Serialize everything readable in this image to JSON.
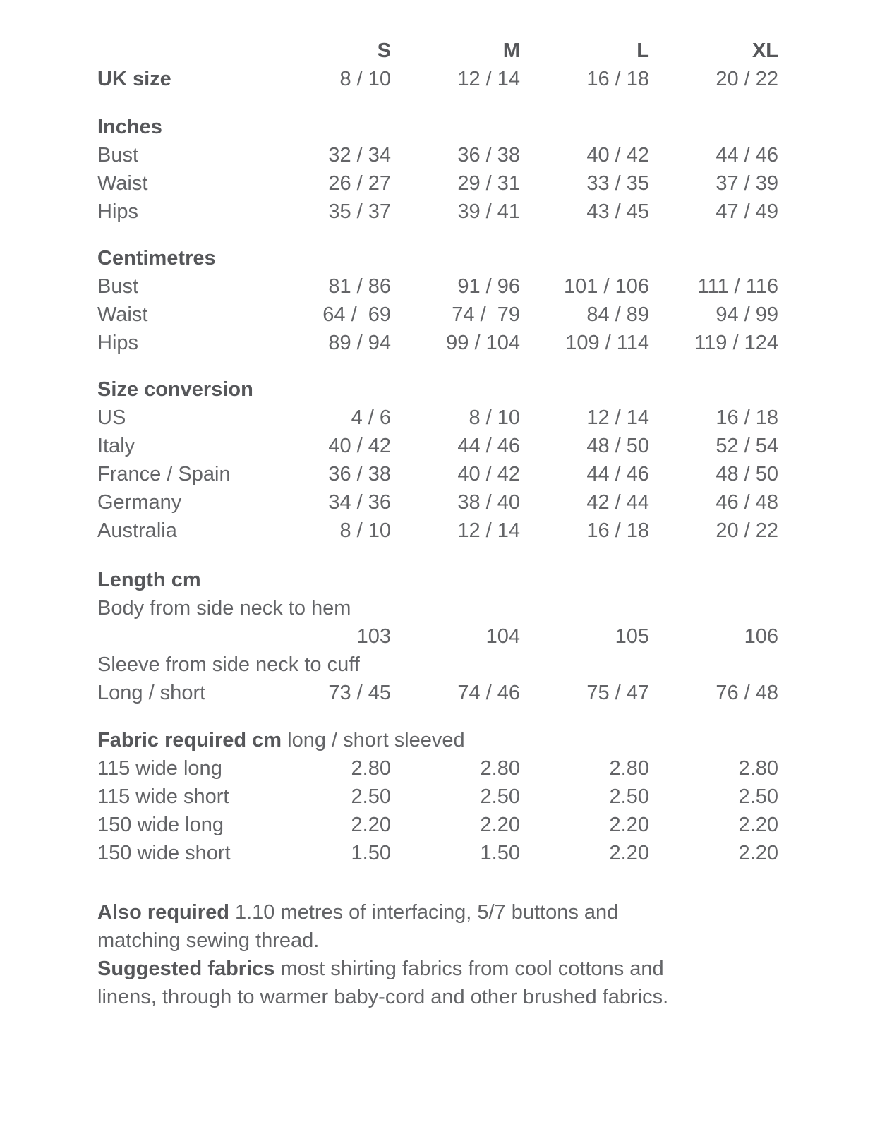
{
  "columns": [
    "S",
    "M",
    "L",
    "XL"
  ],
  "uk_size": {
    "label": "UK size",
    "values": [
      "8 / 10",
      "12 / 14",
      "16 / 18",
      "20 / 22"
    ]
  },
  "inches": {
    "title": "Inches",
    "rows": [
      {
        "label": "Bust",
        "values": [
          "32 / 34",
          "36 / 38",
          "40 / 42",
          "44 / 46"
        ]
      },
      {
        "label": "Waist",
        "values": [
          "26 / 27",
          "29 / 31",
          "33 / 35",
          "37 / 39"
        ]
      },
      {
        "label": "Hips",
        "values": [
          "35 / 37",
          "39 / 41",
          "43 / 45",
          "47 / 49"
        ]
      }
    ]
  },
  "centimetres": {
    "title": "Centimetres",
    "rows": [
      {
        "label": "Bust",
        "values": [
          "81 / 86",
          "91 / 96",
          "101 / 106",
          "111 / 116"
        ]
      },
      {
        "label": "Waist",
        "values": [
          "64 /  69",
          "74 /  79",
          "84 / 89",
          "94 / 99"
        ]
      },
      {
        "label": "Hips",
        "values": [
          "89 / 94",
          "99 / 104",
          "109 / 114",
          "119 / 124"
        ]
      }
    ]
  },
  "size_conversion": {
    "title": "Size conversion",
    "rows": [
      {
        "label": "US",
        "values": [
          "4 / 6",
          "8 / 10",
          "12 / 14",
          "16 / 18"
        ]
      },
      {
        "label": "Italy",
        "values": [
          "40 / 42",
          "44 / 46",
          "48 / 50",
          "52 / 54"
        ]
      },
      {
        "label": "France / Spain",
        "values": [
          "36 / 38",
          "40 / 42",
          "44 / 46",
          "48 / 50"
        ]
      },
      {
        "label": "Germany",
        "values": [
          "34 / 36",
          "38 / 40",
          "42 / 44",
          "46 / 48"
        ]
      },
      {
        "label": "Australia",
        "values": [
          "8 / 10",
          "12 / 14",
          "16 / 18",
          "20 / 22"
        ]
      }
    ]
  },
  "length": {
    "title": "Length cm",
    "body_label": "Body from side neck to hem",
    "body_values": [
      "103",
      "104",
      "105",
      "106"
    ],
    "sleeve_label": "Sleeve from side neck to cuff",
    "long_short": {
      "label": "Long / short",
      "values": [
        "73 / 45",
        "74 / 46",
        "75 / 47",
        "76 / 48"
      ]
    }
  },
  "fabric": {
    "title_bold": "Fabric required cm",
    "title_rest": " long / short sleeved",
    "rows": [
      {
        "label": "115 wide long",
        "values": [
          "2.80",
          "2.80",
          "2.80",
          "2.80"
        ]
      },
      {
        "label": "115 wide short",
        "values": [
          "2.50",
          "2.50",
          "2.50",
          "2.50"
        ]
      },
      {
        "label": "150 wide long",
        "values": [
          "2.20",
          "2.20",
          "2.20",
          "2.20"
        ]
      },
      {
        "label": "150 wide short",
        "values": [
          "1.50",
          "1.50",
          "2.20",
          "2.20"
        ]
      }
    ]
  },
  "notes": [
    {
      "bold": "Also required",
      "line1": " 1.10 metres of interfacing, 5/7 buttons and",
      "line2": "matching sewing thread."
    },
    {
      "bold": "Suggested fabrics",
      "line1": " most shirting fabrics from cool cottons and",
      "line2": "linens, through to warmer baby-cord and other brushed fabrics."
    }
  ],
  "colors": {
    "background": "#ffffff",
    "text_regular": "#636467",
    "text_bold": "#56575a"
  }
}
